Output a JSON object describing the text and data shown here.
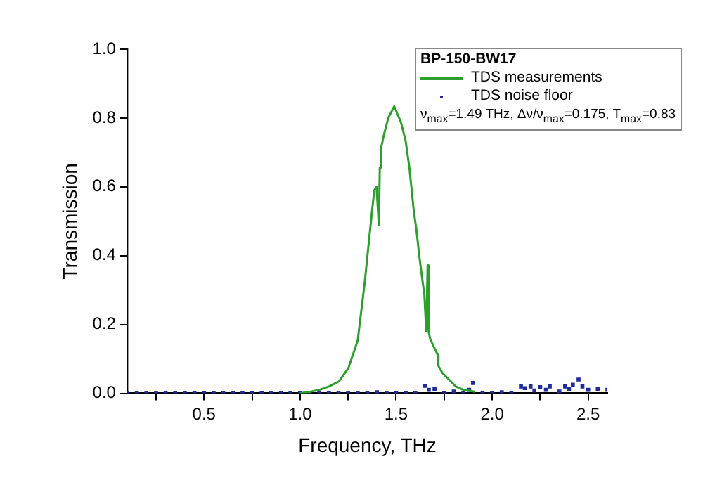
{
  "chart_data": {
    "type": "line",
    "xlabel": "Frequency, THz",
    "ylabel": "Transmission",
    "legend_title": "BP-150-BW17",
    "legend": "top right",
    "grid": false,
    "annotations": [
      "ν$_{max}$=1.49 THz, Δν/ν$_{max}$=0.175, T$_{max}$=0.83"
    ],
    "xlim": [
      0.1,
      2.6
    ],
    "ylim": [
      0,
      1
    ],
    "xticks": [
      {
        "value": 0.25,
        "label": null
      },
      0.5,
      {
        "value": 0.75,
        "label": null
      },
      {
        "value": 1.0,
        "label": "1.0"
      },
      {
        "value": 1.25,
        "label": null
      },
      1.5,
      {
        "value": 1.75,
        "label": null
      },
      {
        "value": 2.0,
        "label": "2.0"
      },
      {
        "value": 2.25,
        "label": null
      },
      2.5
    ],
    "yticks": [
      {
        "value": 0,
        "label": "0.0"
      },
      0.2,
      0.4,
      0.6,
      0.8,
      {
        "value": 1.0,
        "label": "1.0"
      }
    ],
    "series": [
      {
        "name": "TDS measurements",
        "color": "#2ca02c",
        "marker": "none",
        "x": [
          1.0,
          1.056,
          1.1,
          1.15,
          1.203,
          1.252,
          1.3,
          1.337,
          1.361,
          1.386,
          1.398,
          1.41,
          1.415,
          1.42,
          1.435,
          1.459,
          1.49,
          1.508,
          1.525,
          1.549,
          1.569,
          1.593,
          1.605,
          1.622,
          1.647,
          1.657,
          1.664,
          1.669,
          1.679,
          1.68,
          1.703,
          1.715,
          1.72,
          1.74,
          1.788,
          1.81,
          1.85,
          1.91
        ],
        "values": [
          0,
          0.005,
          0.01,
          0.02,
          0.035,
          0.074,
          0.154,
          0.325,
          0.457,
          0.59,
          0.6,
          0.49,
          0.656,
          0.708,
          0.748,
          0.8,
          0.834,
          0.81,
          0.788,
          0.735,
          0.656,
          0.524,
          0.478,
          0.392,
          0.286,
          0.18,
          0.372,
          0.18,
          0.154,
          0.155,
          0.127,
          0.114,
          0.08,
          0.06,
          0.033,
          0.02,
          0.01,
          0.005
        ]
      },
      {
        "name": "TDS noise floor",
        "type": "scatter",
        "color": "#1f2a9c",
        "marker": "square",
        "x": [
          0.1,
          0.15,
          0.2,
          0.25,
          0.3,
          0.35,
          0.4,
          0.45,
          0.5,
          0.55,
          0.6,
          0.65,
          0.7,
          0.75,
          0.8,
          0.85,
          0.9,
          0.95,
          1.0,
          1.05,
          1.1,
          1.15,
          1.2,
          1.25,
          1.3,
          1.35,
          1.4,
          1.45,
          1.5,
          1.55,
          1.6,
          1.65,
          1.67,
          1.7,
          1.75,
          1.8,
          1.85,
          1.88,
          1.9,
          1.95,
          2.0,
          2.05,
          2.1,
          2.15,
          2.17,
          2.2,
          2.22,
          2.25,
          2.28,
          2.3,
          2.35,
          2.38,
          2.4,
          2.42,
          2.45,
          2.47,
          2.5,
          2.55,
          2.6
        ],
        "values": [
          0,
          0,
          0,
          0,
          0,
          0,
          0,
          0,
          0,
          0,
          0,
          0,
          0,
          0,
          0,
          0,
          0,
          0,
          0,
          0,
          0,
          0,
          0,
          0,
          0,
          0,
          0.003,
          0,
          0,
          0,
          0,
          0.022,
          0.01,
          0.012,
          0,
          0.005,
          0,
          0.01,
          0.03,
          0,
          0,
          0.003,
          0,
          0.02,
          0.015,
          0.02,
          0.008,
          0.018,
          0.01,
          0.02,
          0.005,
          0.02,
          0.012,
          0.025,
          0.04,
          0.02,
          0.01,
          0.012,
          0.01
        ]
      }
    ]
  }
}
